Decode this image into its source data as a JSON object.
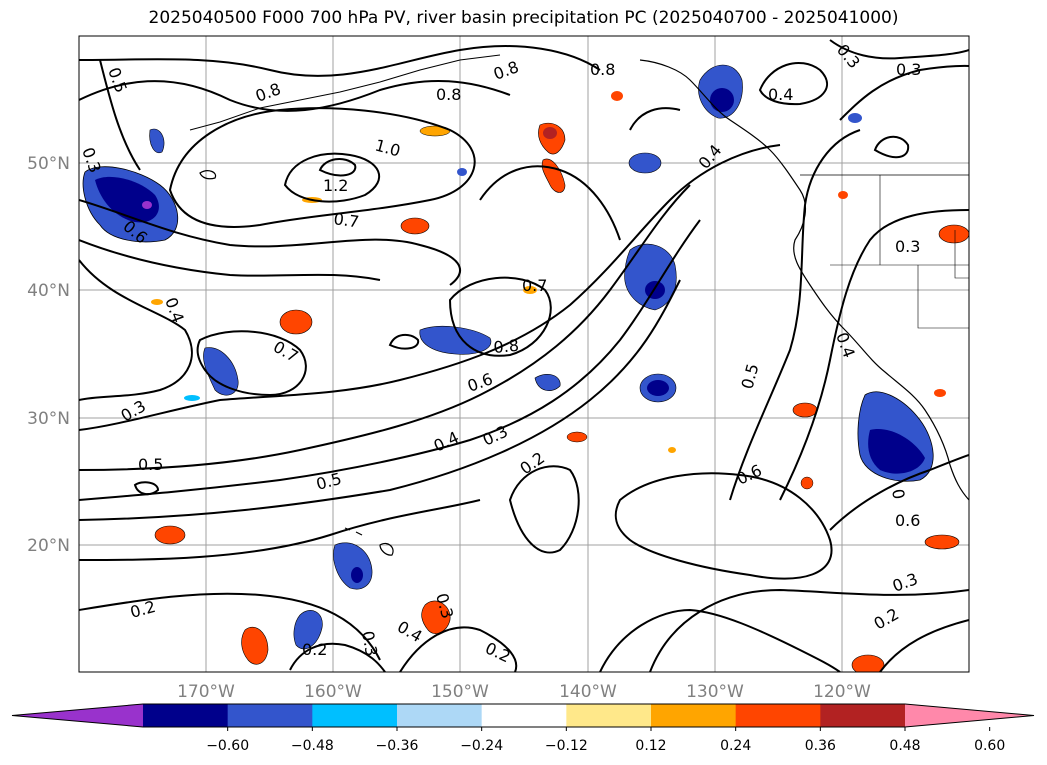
{
  "title": "2025040500 F000 700 hPa PV, river basin precipitation PC (2025040700 - 2025041000)",
  "lat_labels": [
    "50°N",
    "40°N",
    "30°N",
    "20°N"
  ],
  "lon_labels": [
    "170°W",
    "160°W",
    "150°W",
    "140°W",
    "130°W",
    "120°W"
  ],
  "colorbar": {
    "ticks": [
      "−0.60",
      "−0.48",
      "−0.36",
      "−0.24",
      "−0.12",
      "0.12",
      "0.24",
      "0.36",
      "0.48",
      "0.60"
    ],
    "colors": [
      "#9932cc",
      "#00008b",
      "#3355cc",
      "#00bfff",
      "#add8f6",
      "#ffffff",
      "#ffe88a",
      "#ffa500",
      "#ff4500",
      "#b22222",
      "#ff88aa"
    ]
  },
  "contour_labels": [
    {
      "text": "0.5"
    },
    {
      "text": "0.3"
    },
    {
      "text": "0.8"
    },
    {
      "text": "0.8"
    },
    {
      "text": "0.8"
    },
    {
      "text": "1.0"
    },
    {
      "text": "1.2"
    },
    {
      "text": "0.7"
    },
    {
      "text": "0.6"
    },
    {
      "text": "0.4"
    },
    {
      "text": "0.3"
    },
    {
      "text": "0.8"
    },
    {
      "text": "0.4"
    },
    {
      "text": "0.7"
    },
    {
      "text": "0.8"
    },
    {
      "text": "0.7"
    },
    {
      "text": "0.6"
    },
    {
      "text": "0.4"
    },
    {
      "text": "0.3"
    },
    {
      "text": "0.3"
    },
    {
      "text": "0.5"
    },
    {
      "text": "0.5"
    },
    {
      "text": "0.2"
    },
    {
      "text": "0.5"
    },
    {
      "text": "0.4"
    },
    {
      "text": "0.3"
    },
    {
      "text": "0.6"
    },
    {
      "text": "0.6"
    },
    {
      "text": "0.3"
    },
    {
      "text": "0.2"
    },
    {
      "text": "0.2"
    },
    {
      "text": "0.3"
    },
    {
      "text": "0.4"
    },
    {
      "text": "0.3"
    },
    {
      "text": "0.2"
    },
    {
      "text": "0.2"
    },
    {
      "text": "0.3"
    },
    {
      "text": "0.4"
    },
    {
      "text": "0"
    }
  ]
}
